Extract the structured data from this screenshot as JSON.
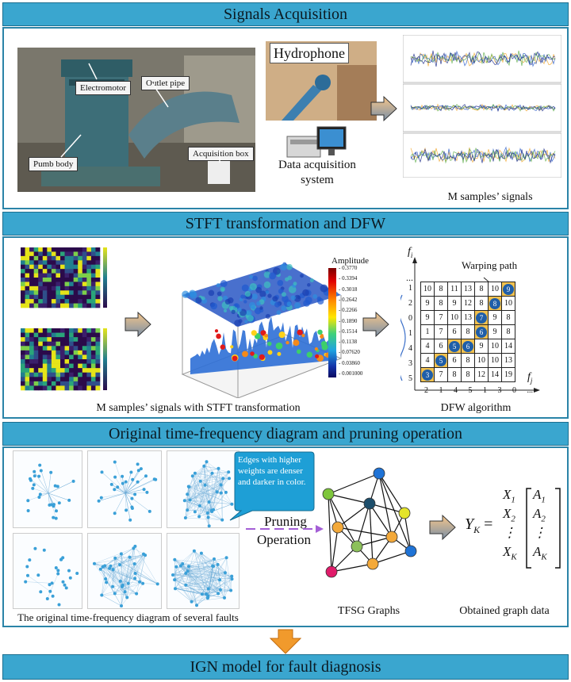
{
  "sections": {
    "s1_title": "Signals Acquisition",
    "s2_title": "STFT transformation and DFW",
    "s3_title": "Original time-frequency diagram and pruning operation",
    "s4_title": "IGN model for fault diagnosis"
  },
  "acquisition": {
    "tag_electromotor": "Electromotor",
    "tag_outlet": "Outlet pipe",
    "tag_pumb": "Pumb body",
    "tag_acqbox": "Acquisition box",
    "hydrophone": "Hydrophone",
    "daq_line1": "Data acquisition",
    "daq_line2": "system",
    "signals_caption": "M samples’ signals"
  },
  "stft": {
    "caption": "M samples’ signals with STFT transformation",
    "amplitude_label": "Amplitude",
    "colorbar_ticks": [
      "0.3770",
      "0.3394",
      "0.3018",
      "0.2642",
      "0.2266",
      "0.1890",
      "0.1514",
      "0.1138",
      "0.07620",
      "0.03860",
      "0.001000"
    ]
  },
  "dfw": {
    "caption": "DFW algorithm",
    "warping_path": "Warping path",
    "fi": "f",
    "fi_sub": "i",
    "fj": "f",
    "fj_sub": "j",
    "ellipsis": "...",
    "row_labels": [
      "1",
      "2",
      "0",
      "1",
      "4",
      "3",
      "5"
    ],
    "col_labels": [
      "2",
      "1",
      "4",
      "5",
      "1",
      "3",
      "0",
      "..."
    ],
    "matrix": [
      [
        "10",
        "8",
        "11",
        "13",
        "8",
        "10",
        "9"
      ],
      [
        "9",
        "8",
        "9",
        "12",
        "8",
        "8",
        "10"
      ],
      [
        "9",
        "7",
        "10",
        "13",
        "7",
        "9",
        "8"
      ],
      [
        "1",
        "7",
        "6",
        "8",
        "6",
        "9",
        "8"
      ],
      [
        "4",
        "6",
        "5",
        "6",
        "9",
        "10",
        "14"
      ],
      [
        "4",
        "5",
        "6",
        "8",
        "10",
        "10",
        "13"
      ],
      [
        "3",
        "7",
        "8",
        "8",
        "12",
        "14",
        "19"
      ]
    ]
  },
  "pruning": {
    "callout": "Edges with higher weights are denser and darker in color.",
    "label_line1": "Pruning",
    "label_line2": "Operation",
    "orig_caption": "The original time-frequency diagram of several faults",
    "tfsg_caption": "TFSG Graphs",
    "graph_caption": "Obtained graph data",
    "eq_lhs": "Y",
    "eq_lhs_sub": "K",
    "eq_eq": "=",
    "x_rows": [
      "X",
      "X",
      "⋮",
      "X"
    ],
    "x_subs": [
      "1",
      "2",
      "",
      "K"
    ],
    "a_rows": [
      "A",
      "A",
      "⋮",
      "A"
    ],
    "a_subs": [
      "1",
      "2",
      "",
      "K"
    ]
  }
}
